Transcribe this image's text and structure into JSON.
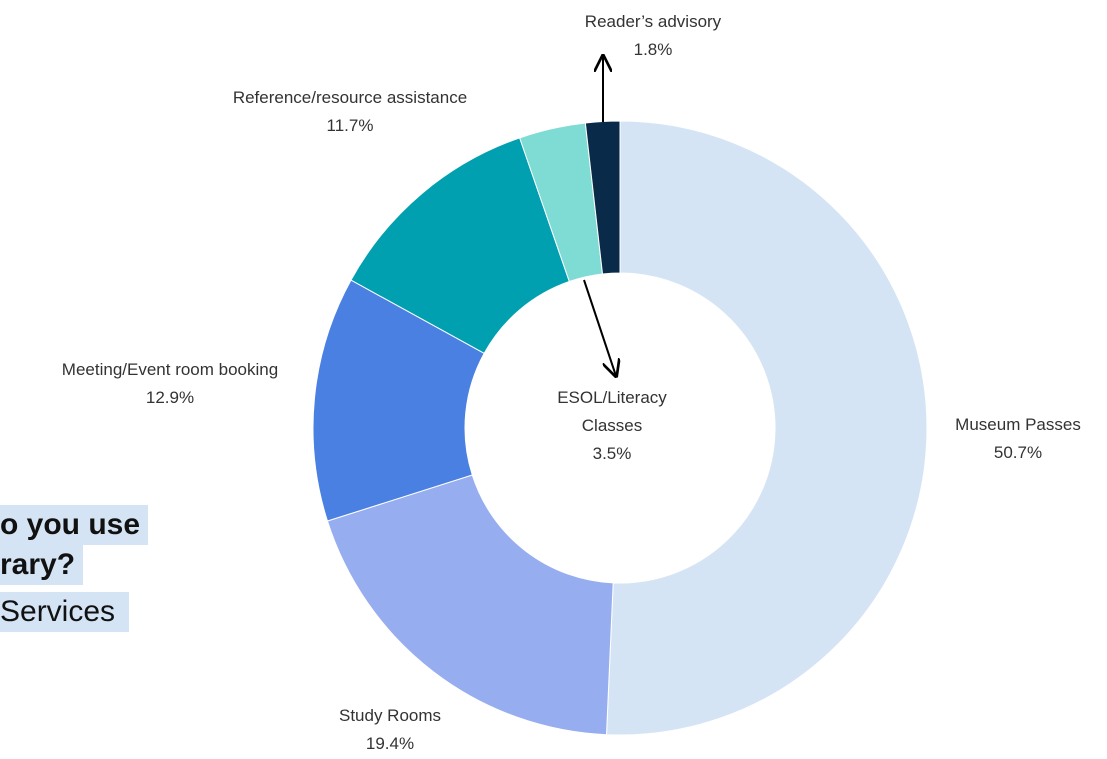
{
  "chart_data": {
    "type": "donut",
    "title_lines": [
      "o you use",
      "rary?",
      "Services"
    ],
    "categories": [
      "Museum Passes",
      "Study Rooms",
      "Meeting/Event room booking",
      "Reference/resource assistance",
      "ESOL/Literacy Classes",
      "Reader’s advisory"
    ],
    "values": [
      50.7,
      19.4,
      12.9,
      11.7,
      3.5,
      1.8
    ],
    "value_labels": [
      "50.7%",
      "19.4%",
      "12.9%",
      "11.7%",
      "3.5%",
      "1.8%"
    ],
    "colors": [
      "#d4e4f4",
      "#96adf0",
      "#4a80e2",
      "#00a0b0",
      "#7fdcd4",
      "#0a2a4a"
    ]
  }
}
